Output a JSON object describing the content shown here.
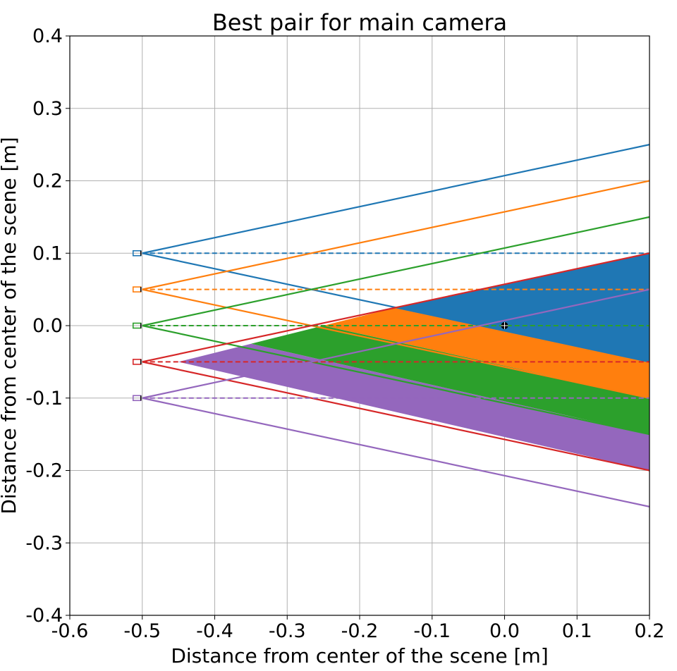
{
  "chart_data": {
    "type": "line",
    "title": "Best pair for main camera",
    "xlabel": "Distance from center of the scene [m]",
    "ylabel": "Distance from center of the scene [m]",
    "xlim": [
      -0.6,
      0.2
    ],
    "ylim": [
      -0.4,
      0.4
    ],
    "xticks": [
      "-0.6",
      "-0.5",
      "-0.4",
      "-0.3",
      "-0.2",
      "-0.1",
      "0.0",
      "0.1",
      "0.2"
    ],
    "yticks": [
      "-0.4",
      "-0.3",
      "-0.2",
      "-0.1",
      "0.0",
      "0.1",
      "0.2",
      "0.3",
      "0.4"
    ],
    "grid": true,
    "cameras": [
      {
        "color": "#1f77b4",
        "origin": [
          -0.5,
          0.1
        ],
        "upper_ray_end": [
          0.2,
          0.25
        ],
        "lower_ray_end": [
          0.2,
          -0.05
        ],
        "axis_end": [
          0.2,
          0.1
        ]
      },
      {
        "color": "#ff7f0e",
        "origin": [
          -0.5,
          0.05
        ],
        "upper_ray_end": [
          0.2,
          0.2
        ],
        "lower_ray_end": [
          0.2,
          -0.1
        ],
        "axis_end": [
          0.2,
          0.05
        ]
      },
      {
        "color": "#2ca02c",
        "origin": [
          -0.5,
          0.0
        ],
        "upper_ray_end": [
          0.2,
          0.15
        ],
        "lower_ray_end": [
          0.2,
          -0.15
        ],
        "axis_end": [
          0.2,
          0.0
        ]
      },
      {
        "color": "#d62728",
        "origin": [
          -0.5,
          -0.05
        ],
        "upper_ray_end": [
          0.2,
          0.1
        ],
        "lower_ray_end": [
          0.2,
          -0.2
        ],
        "axis_end": [
          0.2,
          -0.05
        ]
      },
      {
        "color": "#9467bd",
        "origin": [
          -0.5,
          -0.1
        ],
        "upper_ray_end": [
          0.2,
          0.05
        ],
        "lower_ray_end": [
          0.2,
          -0.25
        ],
        "axis_end": [
          0.2,
          -0.1
        ]
      }
    ],
    "overlap_regions": [
      {
        "color": "#1f77b4",
        "points": [
          [
            -0.15,
            0.025
          ],
          [
            0.2,
            0.1
          ],
          [
            0.2,
            -0.05
          ]
        ]
      },
      {
        "color": "#ff7f0e",
        "points": [
          [
            -0.25,
            0.0
          ],
          [
            -0.15,
            0.025
          ],
          [
            0.2,
            -0.05
          ],
          [
            0.2,
            -0.1
          ]
        ]
      },
      {
        "color": "#2ca02c",
        "points": [
          [
            -0.35,
            -0.025
          ],
          [
            -0.25,
            0.0
          ],
          [
            0.2,
            -0.1
          ],
          [
            0.2,
            -0.15
          ]
        ]
      },
      {
        "color": "#9467bd",
        "points": [
          [
            -0.45,
            -0.05
          ],
          [
            -0.35,
            -0.025
          ],
          [
            0.2,
            -0.15
          ],
          [
            0.2,
            -0.2
          ]
        ]
      }
    ],
    "main_camera_marker": {
      "x": 0.0,
      "y": 0.0,
      "color": "#000000"
    }
  }
}
